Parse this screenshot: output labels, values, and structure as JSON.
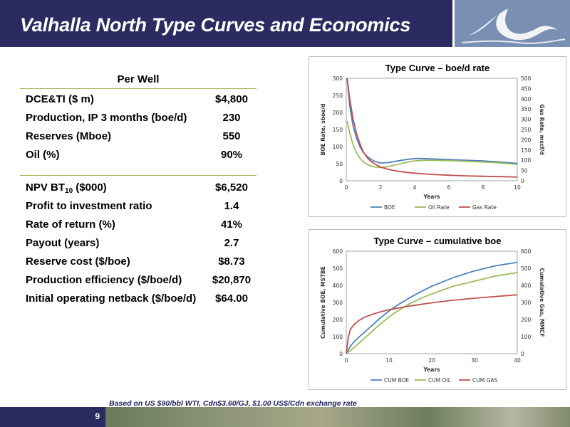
{
  "header": {
    "title": "Valhalla North Type Curves and Economics"
  },
  "table": {
    "heading": "Per Well",
    "group1": [
      {
        "label": "DCE&TI ($ m)",
        "value": "$4,800"
      },
      {
        "label": "Production, IP 3 months (boe/d)",
        "value": "230"
      },
      {
        "label": "Reserves (Mboe)",
        "value": "550"
      },
      {
        "label": "Oil (%)",
        "value": "90%"
      }
    ],
    "npv": {
      "label_main": "NPV BT",
      "label_sub": "10",
      "label_tail": " ($000)",
      "value": "$6,520"
    },
    "group2": [
      {
        "label": "Profit to investment ratio",
        "value": "1.4"
      },
      {
        "label": "Rate of return (%)",
        "value": "41%"
      },
      {
        "label": "Payout (years)",
        "value": "2.7"
      },
      {
        "label": "Reserve cost ($/boe)",
        "value": "$8.73"
      },
      {
        "label": "Production efficiency ($/boe/d)",
        "value": "$20,870"
      },
      {
        "label": "Initial operating netback ($/boe/d)",
        "value": "$64.00"
      }
    ]
  },
  "footnote": "Based on US $90/bbl WTI,  Cdn$3.60/GJ, $1.00 US$/Cdn exchange rate",
  "page_number": "9",
  "colors": {
    "header_bg": "#2b2a61",
    "table_rule": "#9bbb59",
    "boe": "#4f81bd",
    "oil": "#9bbb59",
    "gas": "#c0504d"
  },
  "chart_data": [
    {
      "type": "line",
      "title": "Type Curve – boe/d rate",
      "xlabel": "Years",
      "ylabel": "BOE Rate, sboe/d",
      "y2label": "Gas Rate, mscf/d",
      "xlim": [
        0,
        10
      ],
      "ylim": [
        0,
        300
      ],
      "y2lim": [
        0,
        500
      ],
      "xticks": [
        0,
        2,
        4,
        6,
        8,
        10
      ],
      "yticks": [
        0,
        50,
        100,
        150,
        200,
        250,
        300
      ],
      "y2ticks": [
        0,
        50,
        100,
        150,
        200,
        250,
        300,
        350,
        400,
        450,
        500
      ],
      "legend": "bottom",
      "series": [
        {
          "name": "BOE",
          "axis": "left",
          "color": "#4f81bd",
          "x": [
            0.05,
            0.2,
            0.4,
            0.6,
            0.8,
            1.0,
            1.3,
            1.6,
            2.0,
            2.4,
            3.0,
            3.5,
            4.0,
            4.5,
            5.0,
            6.0,
            7.0,
            8.0,
            9.0,
            10.0
          ],
          "y": [
            300,
            220,
            160,
            125,
            100,
            82,
            68,
            58,
            52,
            53,
            58,
            62,
            65,
            65,
            64,
            62,
            60,
            58,
            55,
            51
          ]
        },
        {
          "name": "Oil Rate",
          "axis": "left",
          "color": "#9bbb59",
          "x": [
            0.05,
            0.2,
            0.4,
            0.6,
            0.8,
            1.0,
            1.3,
            1.6,
            2.0,
            2.4,
            3.0,
            3.5,
            4.0,
            4.5,
            5.0,
            6.0,
            7.0,
            8.0,
            9.0,
            10.0
          ],
          "y": [
            175,
            140,
            105,
            82,
            66,
            55,
            46,
            41,
            39,
            41,
            48,
            54,
            58,
            60,
            60,
            59,
            57,
            55,
            52,
            48
          ]
        },
        {
          "name": "Gas Rate",
          "axis": "right",
          "color": "#c0504d",
          "x": [
            0.05,
            0.2,
            0.4,
            0.6,
            0.8,
            1.0,
            1.3,
            1.6,
            2.0,
            2.5,
            3.0,
            3.5,
            4.0,
            5.0,
            6.0,
            7.0,
            8.0,
            9.0,
            10.0
          ],
          "y": [
            500,
            400,
            300,
            230,
            180,
            140,
            105,
            85,
            67,
            55,
            47,
            41,
            37,
            31,
            27,
            24,
            22,
            20,
            18
          ]
        }
      ]
    },
    {
      "type": "line",
      "title": "Type Curve – cumulative boe",
      "xlabel": "Years",
      "ylabel": "Cumulative BOE, MSTBE",
      "y2label": "Cumulative Gas, MMCF",
      "xlim": [
        0,
        40
      ],
      "ylim": [
        0,
        600
      ],
      "y2lim": [
        0,
        600
      ],
      "xticks": [
        0,
        10,
        20,
        30,
        40
      ],
      "yticks": [
        0,
        100,
        200,
        300,
        400,
        500,
        600
      ],
      "y2ticks": [
        0,
        100,
        200,
        300,
        400,
        500,
        600
      ],
      "legend": "bottom",
      "series": [
        {
          "name": "CUM BOE",
          "axis": "left",
          "color": "#4f81bd",
          "x": [
            0,
            1,
            2,
            4,
            6,
            8,
            10,
            12,
            15,
            18,
            20,
            25,
            30,
            35,
            40
          ],
          "y": [
            0,
            45,
            75,
            120,
            165,
            210,
            250,
            285,
            330,
            370,
            395,
            445,
            485,
            515,
            535
          ]
        },
        {
          "name": "CUM OIL",
          "axis": "left",
          "color": "#9bbb59",
          "x": [
            0,
            1,
            2,
            4,
            6,
            8,
            10,
            12,
            15,
            18,
            20,
            25,
            30,
            35,
            40
          ],
          "y": [
            0,
            20,
            40,
            85,
            130,
            175,
            215,
            250,
            295,
            330,
            350,
            395,
            425,
            455,
            475
          ]
        },
        {
          "name": "CUM GAS",
          "axis": "right",
          "color": "#c0504d",
          "x": [
            0,
            0.5,
            1,
            2,
            3,
            4,
            6,
            8,
            10,
            15,
            20,
            25,
            30,
            35,
            40
          ],
          "y": [
            0,
            100,
            145,
            175,
            195,
            210,
            230,
            245,
            258,
            280,
            298,
            313,
            325,
            335,
            345
          ]
        }
      ]
    }
  ]
}
